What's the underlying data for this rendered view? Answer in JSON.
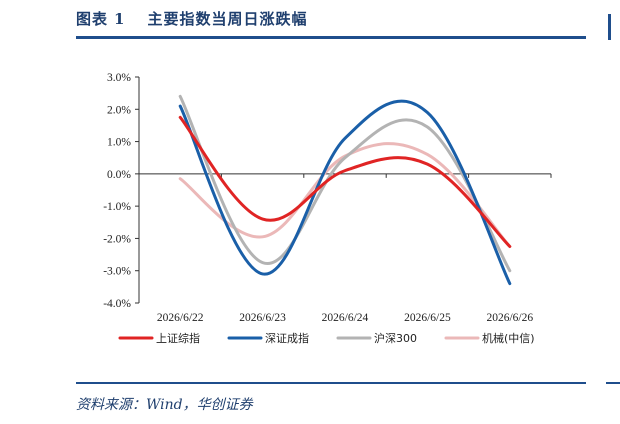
{
  "figure": {
    "label": "图表",
    "number": "1",
    "title": "主要指数当周日涨跌幅",
    "source": "资料来源：Wind，华创证券"
  },
  "chart_data": {
    "type": "line",
    "smooth": true,
    "categories": [
      "2026/6/22",
      "2026/6/23",
      "2026/6/24",
      "2026/6/25",
      "2026/6/26"
    ],
    "ylim": [
      -4.0,
      3.0
    ],
    "yticks": [
      "3.0%",
      "2.0%",
      "1.0%",
      "0.0%",
      "-1.0%",
      "-2.0%",
      "-3.0%",
      "-4.0%"
    ],
    "ytick_values": [
      3.0,
      2.0,
      1.0,
      0.0,
      -1.0,
      -2.0,
      -3.0,
      -4.0
    ],
    "legend_position": "bottom",
    "grid": false,
    "series": [
      {
        "name": "上证综指",
        "color": "#e02424",
        "values": [
          1.75,
          -1.4,
          0.1,
          0.3,
          -2.25
        ]
      },
      {
        "name": "深证成指",
        "color": "#1a5fa8",
        "values": [
          2.1,
          -3.1,
          1.1,
          1.9,
          -3.4
        ]
      },
      {
        "name": "沪深300",
        "color": "#b3b3b3",
        "values": [
          2.4,
          -2.75,
          0.5,
          1.45,
          -3.0
        ]
      },
      {
        "name": "机械(中信)",
        "color": "#ebb8b8",
        "values": [
          -0.15,
          -1.95,
          0.55,
          0.6,
          -2.25
        ]
      }
    ]
  }
}
